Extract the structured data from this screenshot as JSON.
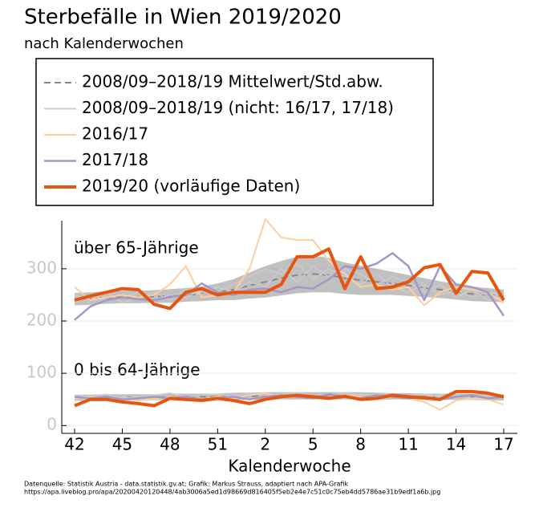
{
  "chart_data": {
    "type": "line",
    "title": "Sterbefälle in Wien 2019/2020",
    "subtitle": "nach Kalenderwochen",
    "x_label": "Kalenderwoche",
    "source": [
      "Datenquelle: Statistik Austria - data.statistik.gv.at; Grafik: Markus Strauss, adaptiert nach APA-Grafik",
      "https://apa.liveblog.pro/apa/20200420120448/4ab3006a5ed1d98669d816405f5eb2e4e7c51c0c75eb4dd5786ae31b9edf1a6b.jpg"
    ],
    "annotations": [
      "über 65-Jährige",
      "0 bis 64-Jährige"
    ],
    "categories": [
      "42",
      null,
      null,
      "45",
      null,
      null,
      "48",
      null,
      null,
      "51",
      null,
      null,
      "2",
      null,
      null,
      "5",
      null,
      null,
      "8",
      null,
      null,
      "11",
      null,
      null,
      "14",
      null,
      null,
      "17"
    ],
    "ylim": [
      -15,
      392
    ],
    "yticks": [
      0,
      100,
      200,
      300
    ],
    "grid": true,
    "series": [
      {
        "name": "2008/09–2018/19 Mittelwert/Std.abw.",
        "color": "#888888",
        "dashed": true,
        "width": 2,
        "values": [
          [
            242,
            243,
            245,
            246,
            246,
            247,
            248,
            250,
            252,
            256,
            260,
            268,
            275,
            282,
            288,
            290,
            288,
            282,
            278,
            275,
            272,
            268,
            264,
            260,
            256,
            252,
            250,
            248
          ],
          [
            53,
            53,
            54,
            54,
            54,
            54,
            55,
            55,
            55,
            55,
            56,
            56,
            57,
            57,
            57,
            57,
            57,
            57,
            57,
            56,
            56,
            56,
            55,
            55,
            55,
            55,
            54,
            54
          ]
        ],
        "sd": [
          [
            12,
            12,
            12,
            12,
            12,
            12,
            13,
            13,
            14,
            16,
            20,
            25,
            30,
            33,
            35,
            35,
            33,
            30,
            28,
            25,
            22,
            20,
            18,
            16,
            15,
            14,
            13,
            12
          ],
          [
            6,
            6,
            6,
            6,
            6,
            6,
            6,
            6,
            6,
            6,
            7,
            7,
            7,
            7,
            7,
            7,
            7,
            7,
            7,
            7,
            6,
            6,
            6,
            6,
            6,
            6,
            6,
            6
          ]
        ]
      },
      {
        "name": "2008/09–2018/19 (nicht: 16/17, 17/18)",
        "color": "#cccccc",
        "width": 1.5,
        "values": [
          [
            235,
            250,
            240,
            245,
            255,
            240,
            250,
            245,
            260,
            255,
            270,
            285,
            300,
            290,
            310,
            280,
            300,
            285,
            270,
            290,
            265,
            255,
            270,
            250,
            260,
            245,
            255,
            250
          ],
          [
            250,
            240,
            255,
            235,
            245,
            255,
            240,
            260,
            250,
            265,
            255,
            275,
            265,
            300,
            275,
            305,
            285,
            300,
            290,
            270,
            285,
            275,
            255,
            270,
            245,
            260,
            240,
            245
          ],
          [
            58,
            55,
            60,
            52,
            55,
            58,
            62,
            55,
            58,
            60,
            55,
            62,
            58,
            60,
            62,
            58,
            60,
            62,
            58,
            60,
            55,
            58,
            60,
            55,
            58,
            52,
            60,
            55
          ],
          [
            48,
            52,
            50,
            55,
            50,
            52,
            50,
            55,
            52,
            50,
            58,
            52,
            55,
            52,
            58,
            55,
            52,
            55,
            60,
            55,
            60,
            52,
            55,
            58,
            52,
            58,
            55,
            58
          ]
        ]
      },
      {
        "name": "2016/17",
        "color": "#fdcf9f",
        "width": 2,
        "values": [
          [
            265,
            240,
            245,
            250,
            245,
            250,
            270,
            305,
            245,
            250,
            255,
            300,
            395,
            360,
            355,
            355,
            315,
            290,
            265,
            270,
            260,
            265,
            230,
            255,
            265,
            260,
            255,
            235
          ],
          [
            52,
            55,
            50,
            52,
            48,
            50,
            55,
            52,
            50,
            55,
            52,
            58,
            62,
            55,
            58,
            52,
            55,
            58,
            55,
            50,
            55,
            52,
            45,
            30,
            48,
            52,
            50,
            40
          ]
        ]
      },
      {
        "name": "2017/18",
        "color": "#a596c9",
        "width": 2.5,
        "values": [
          [
            202,
            228,
            240,
            245,
            242,
            240,
            246,
            250,
            272,
            255,
            250,
            260,
            262,
            255,
            265,
            262,
            280,
            305,
            300,
            310,
            330,
            305,
            240,
            305,
            270,
            265,
            255,
            210
          ],
          [
            55,
            52,
            55,
            50,
            52,
            55,
            52,
            55,
            50,
            52,
            55,
            50,
            55,
            58,
            55,
            52,
            60,
            55,
            52,
            58,
            55,
            52,
            55,
            50,
            55,
            58,
            52,
            55
          ]
        ]
      },
      {
        "name": "2019/20 (vorläufige Daten)",
        "color": "#e6550d",
        "width": 4,
        "values": [
          [
            240,
            248,
            255,
            262,
            260,
            232,
            224,
            255,
            262,
            250,
            255,
            255,
            255,
            270,
            323,
            323,
            338,
            262,
            323,
            262,
            265,
            275,
            302,
            308,
            253,
            295,
            292,
            240
          ],
          [
            38,
            50,
            50,
            45,
            42,
            38,
            52,
            50,
            48,
            52,
            48,
            42,
            50,
            55,
            58,
            55,
            52,
            56,
            50,
            52,
            58,
            55,
            53,
            50,
            65,
            65,
            62,
            55
          ]
        ]
      }
    ]
  }
}
